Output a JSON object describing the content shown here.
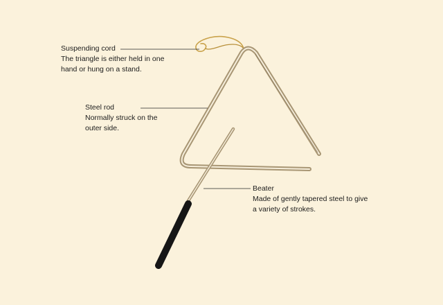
{
  "colors": {
    "background": "#fbf2dc",
    "steel": "#b8a684",
    "steel_highlight": "#f4ead2",
    "cord": "#c9a24a",
    "handle": "#161616",
    "leader_line": "#2a2a2a",
    "text": "#1c1c1c"
  },
  "labels": {
    "cord": {
      "title": "Suspending cord",
      "desc_lines": [
        "The triangle is either held in one",
        "hand or hung on a stand."
      ]
    },
    "rod": {
      "title": "Steel rod",
      "desc_lines": [
        "Normally struck on the",
        "outer side."
      ]
    },
    "beater": {
      "title": "Beater",
      "desc_lines": [
        "Made of gently tapered steel to give",
        "a variety of strokes."
      ]
    }
  }
}
